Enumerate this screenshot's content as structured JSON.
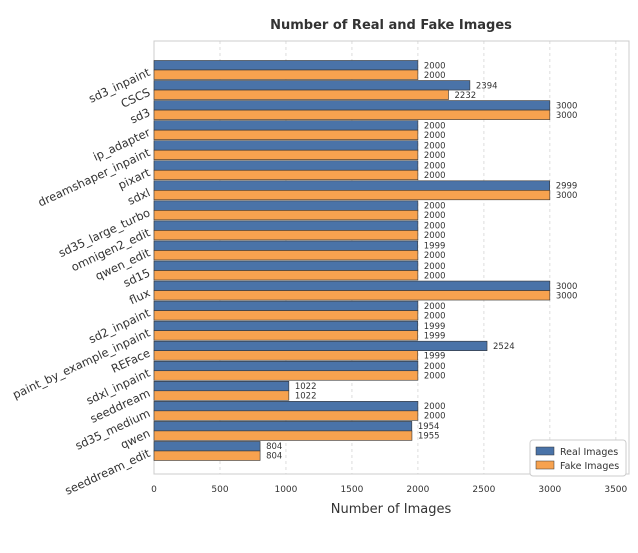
{
  "chart_data": {
    "type": "bar",
    "orientation": "horizontal",
    "title": "Number of Real and Fake Images",
    "xlabel": "Number of Images",
    "ylabel": "",
    "xlim": [
      0,
      3600
    ],
    "xticks": [
      0,
      500,
      1000,
      1500,
      2000,
      2500,
      3000,
      3500
    ],
    "grid": true,
    "legend_position": "bottom-right",
    "categories": [
      "sd3_inpaint",
      "CSCS",
      "sd3",
      "ip_adapter",
      "dreamshaper_inpaint",
      "pixart",
      "sdxl",
      "sd35_large_turbo",
      "omnigen2_edit",
      "qwen_edit",
      "sd15",
      "flux",
      "sd2_inpaint",
      "paint_by_example_inpaint",
      "REFace",
      "sdxl_inpaint",
      "seeddream",
      "sd35_medium",
      "qwen",
      "seeddream_edit"
    ],
    "series": [
      {
        "name": "Real Images",
        "color": "#4a73a8",
        "values": [
          2000,
          2394,
          3000,
          2000,
          2000,
          2000,
          2999,
          2000,
          2000,
          1999,
          2000,
          3000,
          2000,
          1999,
          2524,
          2000,
          1022,
          2000,
          1954,
          804
        ]
      },
      {
        "name": "Fake Images",
        "color": "#f7a24f",
        "values": [
          2000,
          2232,
          3000,
          2000,
          2000,
          2000,
          3000,
          2000,
          2000,
          2000,
          2000,
          3000,
          2000,
          1999,
          1999,
          2000,
          1022,
          2000,
          1955,
          804
        ]
      }
    ]
  }
}
